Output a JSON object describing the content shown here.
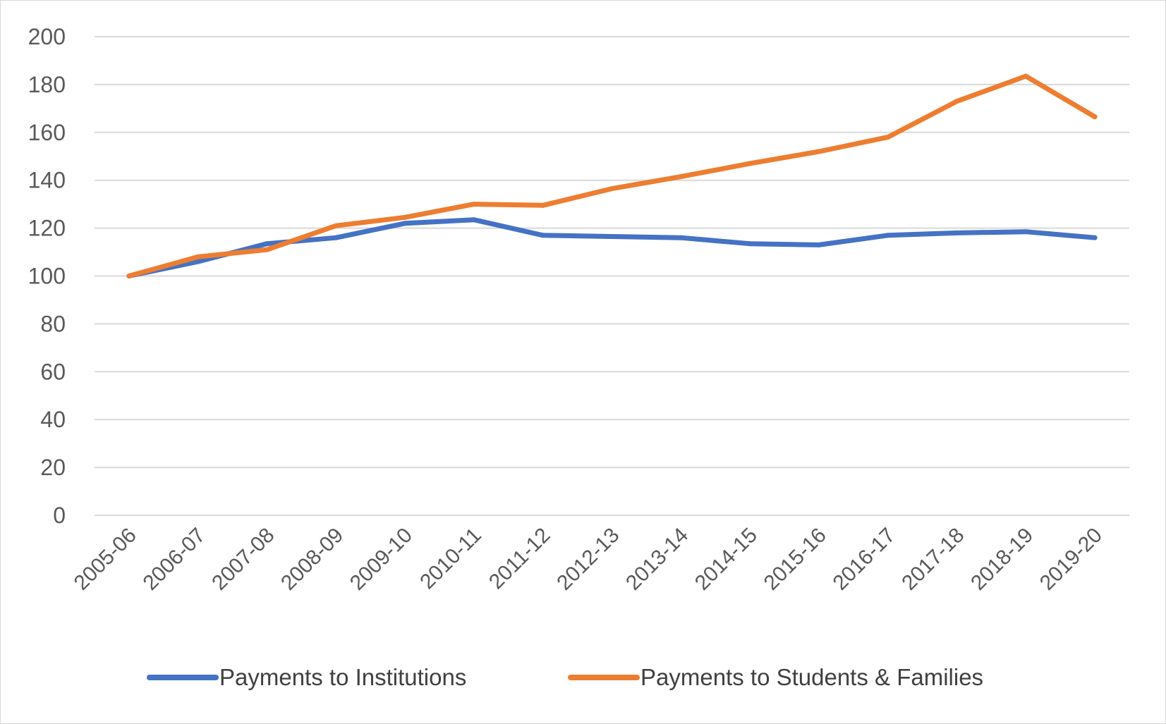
{
  "chart_data": {
    "type": "line",
    "categories": [
      "2005-06",
      "2006-07",
      "2007-08",
      "2008-09",
      "2009-10",
      "2010-11",
      "2011-12",
      "2012-13",
      "2013-14",
      "2014-15",
      "2015-16",
      "2016-17",
      "2017-18",
      "2018-19",
      "2019-20"
    ],
    "series": [
      {
        "name": "Payments to Institutions",
        "color": "#4472C4",
        "values": [
          100,
          106,
          113.5,
          116,
          122,
          123.5,
          117,
          116.5,
          116,
          113.5,
          113,
          117,
          118,
          118.5,
          116
        ]
      },
      {
        "name": "Payments to Students & Families",
        "color": "#ED7D31",
        "values": [
          100,
          108,
          111,
          121,
          124.5,
          130,
          129.5,
          136.5,
          141.5,
          147,
          152,
          158,
          173,
          183.5,
          166.5
        ]
      }
    ],
    "y_ticks": [
      "0",
      "20",
      "40",
      "60",
      "80",
      "100",
      "120",
      "140",
      "160",
      "180",
      "200"
    ],
    "ylim": [
      0,
      200
    ],
    "grid": true,
    "legend_position": "bottom"
  }
}
